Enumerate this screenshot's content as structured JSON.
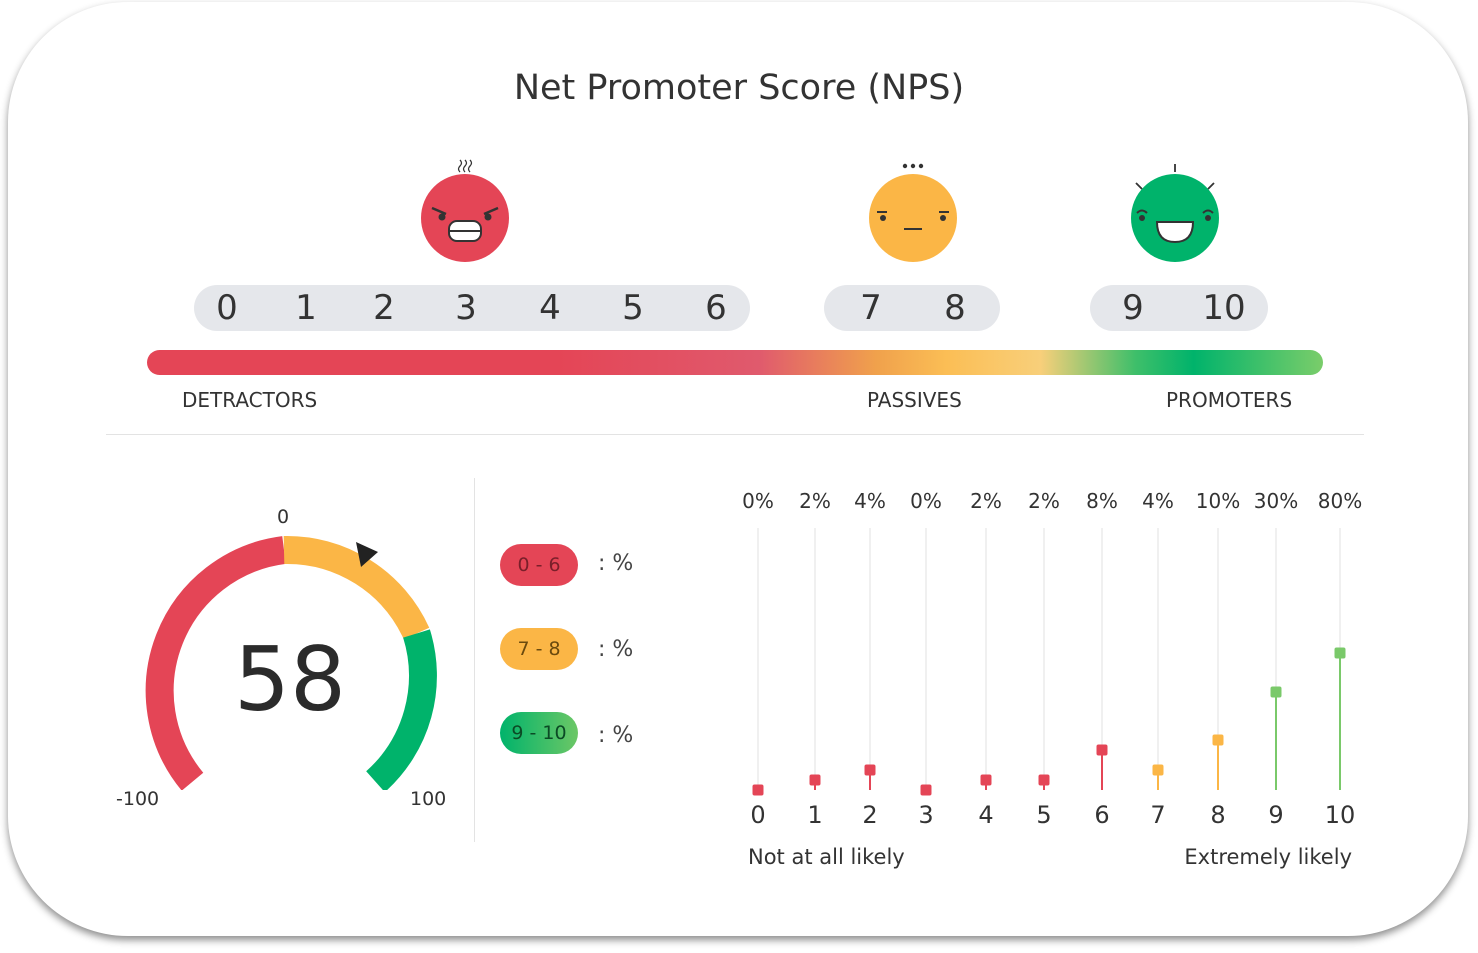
{
  "title": "Net Promoter Score (NPS)",
  "scale": {
    "numbers": [
      "0",
      "1",
      "2",
      "3",
      "4",
      "5",
      "6",
      "7",
      "8",
      "9",
      "10"
    ],
    "segments": [
      "DETRACTORS",
      "PASSIVES",
      "PROMOTERS"
    ]
  },
  "faces": [
    "angry-face-icon",
    "neutral-face-icon",
    "happy-face-icon"
  ],
  "colors": {
    "red": "#e44556",
    "orange": "#fbb646",
    "green": "#00b36b",
    "lightgreen": "#7ac96a",
    "pill": "#e5e7eb"
  },
  "gauge": {
    "score": "58",
    "min_label": "-100",
    "mid_label": "0",
    "max_label": "100",
    "value": 58
  },
  "legend": [
    {
      "range": "0 - 6",
      "text": ":  %"
    },
    {
      "range": "7 - 8",
      "text": ":  %"
    },
    {
      "range": "9 - 10",
      "text": ":  %"
    }
  ],
  "chart_data": {
    "type": "lollipop",
    "categories": [
      "0",
      "1",
      "2",
      "3",
      "4",
      "5",
      "6",
      "7",
      "8",
      "9",
      "10"
    ],
    "values": [
      0,
      2,
      4,
      0,
      2,
      2,
      8,
      4,
      10,
      30,
      80
    ],
    "value_labels": [
      "0%",
      "2%",
      "4%",
      "0%",
      "2%",
      "2%",
      "8%",
      "4%",
      "10%",
      "30%",
      "80%"
    ],
    "left_caption": "Not at all likely",
    "right_caption": "Extremely likely",
    "grid": true
  }
}
